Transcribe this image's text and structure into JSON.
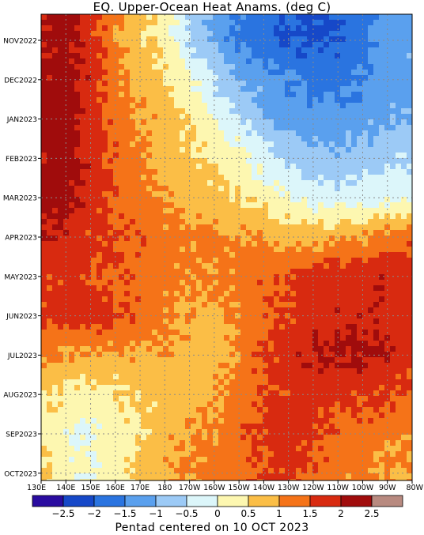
{
  "title": "EQ. Upper-Ocean Heat Anams. (deg C)",
  "footer": "Pentad centered on 10 OCT 2023",
  "chart_data": {
    "type": "heatmap",
    "title": "EQ. Upper-Ocean Heat Anams. (deg C)",
    "x_ticks": [
      "130E",
      "140E",
      "150E",
      "160E",
      "170E",
      "180",
      "170W",
      "160W",
      "150W",
      "140W",
      "130W",
      "120W",
      "110W",
      "100W",
      "90W",
      "80W"
    ],
    "y_ticks": [
      "NOV2022",
      "DEC2022",
      "JAN2023",
      "FEB2023",
      "MAR2023",
      "APR2023",
      "MAY2023",
      "JUN2023",
      "JUL2023",
      "AUG2023",
      "SEP2023",
      "OCT2023"
    ],
    "grid": true,
    "colorbar": {
      "labels": [
        "-2.5",
        "-2",
        "-1.5",
        "-1",
        "-0.5",
        "0",
        "0.5",
        "1",
        "1.5",
        "2",
        "2.5"
      ],
      "colors": [
        "#2a0ca0",
        "#1648c8",
        "#2a74e0",
        "#5aa0ee",
        "#9ccaf6",
        "#dcf6fa",
        "#fdf7b0",
        "#fbbe46",
        "#f57318",
        "#d82a10",
        "#a00c0c",
        "#b88a80"
      ]
    },
    "x": [
      "130E",
      "140E",
      "150E",
      "160E",
      "170E",
      "180",
      "170W",
      "160W",
      "150W",
      "140W",
      "130W",
      "120W",
      "110W",
      "100W",
      "90W",
      "80W"
    ],
    "y": [
      "NOV2022",
      "DEC2022",
      "JAN2023",
      "FEB2023",
      "MAR2023",
      "APR2023",
      "MAY2023",
      "JUN2023",
      "JUL2023",
      "AUG2023",
      "SEP2023",
      "OCT2023"
    ],
    "z": [
      [
        2.1,
        2.2,
        1.7,
        1.1,
        0.6,
        0.3,
        -0.6,
        -1.1,
        -1.6,
        -1.9,
        -2.0,
        -2.1,
        -2.0,
        -1.7,
        -1.2,
        -1.1
      ],
      [
        2.1,
        2.2,
        1.8,
        1.2,
        0.8,
        0.6,
        0.1,
        -0.5,
        -1.0,
        -1.3,
        -1.5,
        -1.7,
        -1.7,
        -1.5,
        -1.3,
        -1.2
      ],
      [
        2.2,
        2.3,
        1.8,
        1.3,
        1.0,
        0.8,
        0.4,
        0.0,
        -0.4,
        -0.9,
        -1.2,
        -1.3,
        -1.3,
        -1.2,
        -1.1,
        -1.0
      ],
      [
        2.0,
        2.3,
        1.9,
        1.4,
        1.1,
        0.8,
        0.6,
        0.4,
        0.1,
        -0.3,
        -0.6,
        -0.8,
        -0.9,
        -0.8,
        -0.6,
        -0.6
      ],
      [
        2.1,
        2.2,
        1.8,
        1.4,
        1.2,
        1.0,
        0.8,
        0.7,
        0.5,
        0.3,
        0.0,
        -0.2,
        -0.3,
        -0.2,
        -0.1,
        -0.1
      ],
      [
        2.0,
        1.9,
        1.6,
        1.5,
        1.4,
        1.2,
        1.1,
        1.1,
        1.0,
        0.9,
        0.8,
        0.8,
        0.9,
        1.0,
        1.2,
        1.3
      ],
      [
        1.7,
        1.6,
        1.5,
        1.4,
        1.3,
        1.2,
        1.0,
        1.1,
        1.2,
        1.4,
        1.6,
        1.7,
        1.8,
        1.8,
        1.9,
        1.7
      ],
      [
        1.6,
        1.7,
        1.8,
        1.6,
        1.4,
        1.1,
        0.9,
        0.8,
        1.1,
        1.4,
        1.6,
        1.8,
        1.9,
        1.9,
        1.8,
        1.6
      ],
      [
        1.1,
        1.0,
        0.9,
        0.9,
        0.9,
        0.9,
        0.8,
        0.8,
        1.1,
        1.5,
        1.8,
        2.0,
        2.1,
        2.1,
        2.0,
        1.7
      ],
      [
        0.5,
        0.4,
        0.3,
        0.4,
        0.6,
        0.7,
        0.8,
        0.9,
        1.2,
        1.4,
        1.6,
        1.7,
        1.7,
        1.6,
        1.5,
        1.4
      ],
      [
        0.5,
        0.1,
        -0.1,
        0.2,
        0.5,
        0.8,
        1.0,
        1.1,
        1.4,
        1.6,
        1.8,
        1.6,
        1.4,
        1.3,
        1.2,
        1.1
      ],
      [
        0.6,
        0.2,
        0.0,
        0.3,
        0.6,
        0.9,
        1.1,
        1.2,
        1.4,
        1.5,
        1.6,
        1.4,
        1.2,
        1.1,
        1.0,
        0.9
      ]
    ]
  }
}
